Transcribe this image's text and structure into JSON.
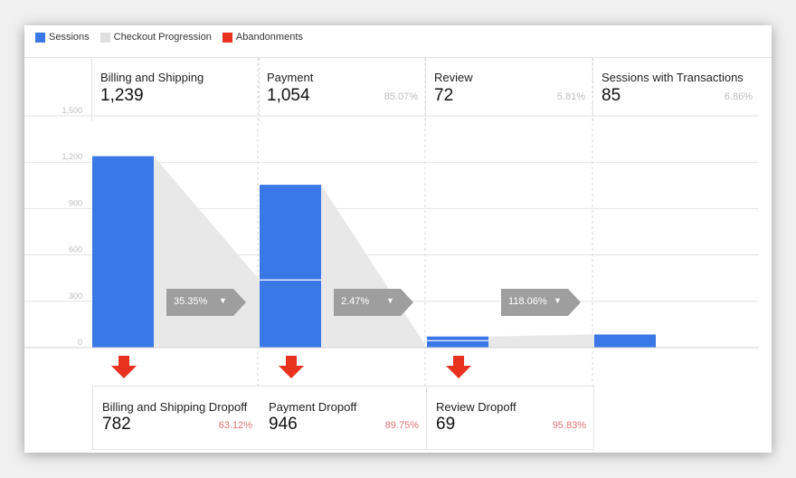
{
  "legend": [
    {
      "label": "Sessions",
      "color": "#3b78e7"
    },
    {
      "label": "Checkout Progression",
      "color": "#e0e0e0"
    },
    {
      "label": "Abandonments",
      "color": "#e8311f"
    }
  ],
  "stages": [
    {
      "name": "Billing and Shipping",
      "value": "1,239",
      "pct": ""
    },
    {
      "name": "Payment",
      "value": "1,054",
      "pct": "85.07%"
    },
    {
      "name": "Review",
      "value": "72",
      "pct": "5.81%"
    },
    {
      "name": "Sessions with Transactions",
      "value": "85",
      "pct": "6.86%"
    }
  ],
  "conversions": [
    {
      "label": "35.35%",
      "caret_icon": "caret-down-icon"
    },
    {
      "label": "2.47%",
      "caret_icon": "caret-down-icon"
    },
    {
      "label": "118.06%",
      "caret_icon": "caret-down-icon"
    }
  ],
  "dropoffs": [
    {
      "name": "Billing and Shipping Dropoff",
      "value": "782",
      "pct": "63.12%"
    },
    {
      "name": "Payment Dropoff",
      "value": "946",
      "pct": "89.75%"
    },
    {
      "name": "Review Dropoff",
      "value": "69",
      "pct": "95.83%"
    }
  ],
  "chart_data": {
    "type": "bar",
    "categories": [
      "Billing and Shipping",
      "Payment",
      "Review",
      "Sessions with Transactions"
    ],
    "series": [
      {
        "name": "Sessions",
        "values": [
          1239,
          1054,
          72,
          85
        ]
      }
    ],
    "segment_split": [
      null,
      438,
      45,
      null
    ],
    "ylim": [
      0,
      1500
    ],
    "yticks": [
      0,
      300,
      600,
      900,
      1200,
      1500
    ],
    "ytick_labels": [
      "0",
      "300",
      "600",
      "900",
      "1,200",
      "1,500"
    ],
    "grid": true,
    "legend_position": "top-left",
    "colors": {
      "sessions": "#3b78e7",
      "progression": "#e8e8e8",
      "abandonment": "#e8311f",
      "badge": "#9e9e9e"
    }
  }
}
